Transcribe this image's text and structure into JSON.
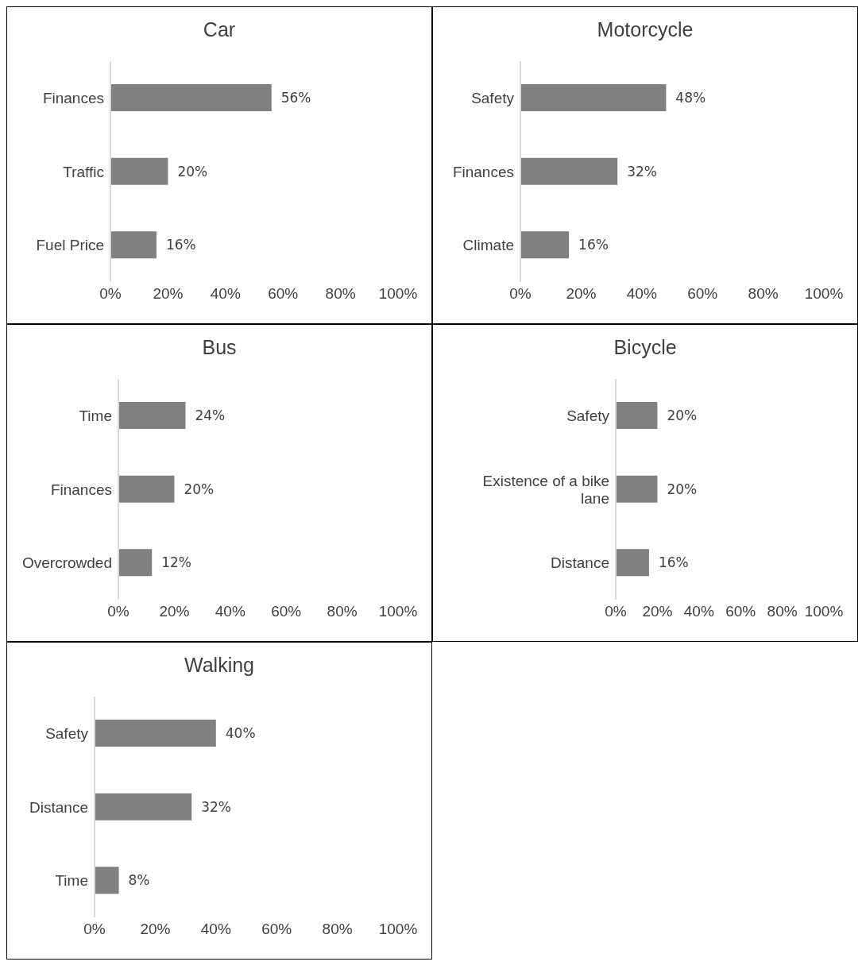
{
  "chart_data": [
    {
      "type": "bar",
      "orientation": "horizontal",
      "title": "Car",
      "categories": [
        "Finances",
        "Traffic",
        "Fuel Price"
      ],
      "values": [
        56,
        20,
        16
      ],
      "value_labels": [
        "56%",
        "20%",
        "16%"
      ],
      "color": "#808080",
      "xlim": [
        0,
        100
      ],
      "xticks": [
        {
          "value": 0,
          "label": "0%"
        },
        {
          "value": 20,
          "label": "20%"
        },
        {
          "value": 40,
          "label": "40%"
        },
        {
          "value": 60,
          "label": "60%"
        },
        {
          "value": 80,
          "label": "80%"
        },
        {
          "value": 100,
          "label": "100%"
        }
      ],
      "grid": false,
      "legend": false
    },
    {
      "type": "bar",
      "orientation": "horizontal",
      "title": "Motorcycle",
      "categories": [
        "Safety",
        "Finances",
        "Climate"
      ],
      "values": [
        48,
        32,
        16
      ],
      "value_labels": [
        "48%",
        "32%",
        "16%"
      ],
      "color": "#808080",
      "xlim": [
        0,
        100
      ],
      "xticks": [
        {
          "value": 0,
          "label": "0%"
        },
        {
          "value": 20,
          "label": "20%"
        },
        {
          "value": 40,
          "label": "40%"
        },
        {
          "value": 60,
          "label": "60%"
        },
        {
          "value": 80,
          "label": "80%"
        },
        {
          "value": 100,
          "label": "100%"
        }
      ],
      "grid": false,
      "legend": false
    },
    {
      "type": "bar",
      "orientation": "horizontal",
      "title": "Bus",
      "categories": [
        "Time",
        "Finances",
        "Overcrowded"
      ],
      "values": [
        24,
        20,
        12
      ],
      "value_labels": [
        "24%",
        "20%",
        "12%"
      ],
      "color": "#808080",
      "xlim": [
        0,
        100
      ],
      "xticks": [
        {
          "value": 0,
          "label": "0%"
        },
        {
          "value": 20,
          "label": "20%"
        },
        {
          "value": 40,
          "label": "40%"
        },
        {
          "value": 60,
          "label": "60%"
        },
        {
          "value": 80,
          "label": "80%"
        },
        {
          "value": 100,
          "label": "100%"
        }
      ],
      "grid": false,
      "legend": false
    },
    {
      "type": "bar",
      "orientation": "horizontal",
      "title": "Bicycle",
      "categories": [
        "Safety",
        "Existence of a bike lane",
        "Distance"
      ],
      "values": [
        20,
        20,
        16
      ],
      "value_labels": [
        "20%",
        "20%",
        "16%"
      ],
      "color": "#808080",
      "xlim": [
        0,
        100
      ],
      "xticks": [
        {
          "value": 0,
          "label": "0%"
        },
        {
          "value": 20,
          "label": "20%"
        },
        {
          "value": 40,
          "label": "40%"
        },
        {
          "value": 60,
          "label": "60%"
        },
        {
          "value": 80,
          "label": "80%"
        },
        {
          "value": 100,
          "label": "100%"
        }
      ],
      "grid": false,
      "legend": false
    },
    {
      "type": "bar",
      "orientation": "horizontal",
      "title": "Walking",
      "categories": [
        "Safety",
        "Distance",
        "Time"
      ],
      "values": [
        40,
        32,
        8
      ],
      "value_labels": [
        "40%",
        "32%",
        "8%"
      ],
      "color": "#808080",
      "xlim": [
        0,
        100
      ],
      "xticks": [
        {
          "value": 0,
          "label": "0%"
        },
        {
          "value": 20,
          "label": "20%"
        },
        {
          "value": 40,
          "label": "40%"
        },
        {
          "value": 60,
          "label": "60%"
        },
        {
          "value": 80,
          "label": "80%"
        },
        {
          "value": 100,
          "label": "100%"
        }
      ],
      "grid": false,
      "legend": false
    }
  ]
}
